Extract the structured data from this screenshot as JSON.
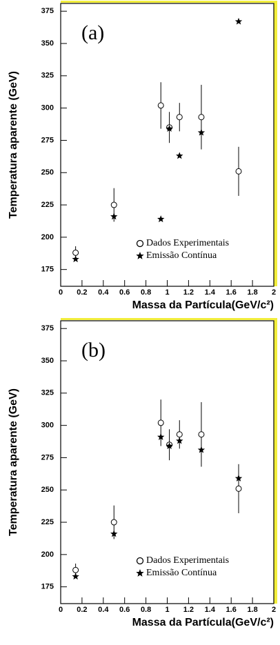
{
  "chart_data": [
    {
      "type": "scatter",
      "annotation": "(a)",
      "xlabel": "Massa da Partícula(GeV/c²)",
      "ylabel": "Temperatura aparente (GeV)",
      "xlim": [
        0,
        2
      ],
      "xticks": [
        0,
        0.2,
        0.4,
        0.6,
        0.8,
        1,
        1.2,
        1.4,
        1.6,
        1.8,
        2
      ],
      "ylim": [
        162,
        381
      ],
      "yticks": [
        175,
        200,
        225,
        250,
        275,
        300,
        325,
        350,
        375
      ],
      "legend": "lower right",
      "x": [
        0.14,
        0.5,
        0.94,
        1.02,
        1.115,
        1.32,
        1.67
      ],
      "series": [
        {
          "name": "Dados Experimentais",
          "marker": "circle",
          "color": "#000000",
          "values": [
            188,
            225,
            302,
            285,
            293,
            293,
            251
          ],
          "errors": [
            5,
            13,
            18,
            12,
            11,
            25,
            19
          ]
        },
        {
          "name": "Emissão Contínua",
          "marker": "star",
          "color": "#000000",
          "values": [
            183,
            216,
            214,
            284,
            263,
            281,
            367
          ]
        }
      ]
    },
    {
      "type": "scatter",
      "annotation": "(b)",
      "xlabel": "Massa da Partícula(GeV/c²)",
      "ylabel": "Temperatura aparente (GeV)",
      "xlim": [
        0,
        2
      ],
      "xticks": [
        0,
        0.2,
        0.4,
        0.6,
        0.8,
        1,
        1.2,
        1.4,
        1.6,
        1.8,
        2
      ],
      "ylim": [
        162,
        381
      ],
      "yticks": [
        175,
        200,
        225,
        250,
        275,
        300,
        325,
        350,
        375
      ],
      "legend": "lower right",
      "x": [
        0.14,
        0.5,
        0.94,
        1.02,
        1.115,
        1.32,
        1.67
      ],
      "series": [
        {
          "name": "Dados Experimentais",
          "marker": "circle",
          "color": "#000000",
          "values": [
            188,
            225,
            302,
            285,
            293,
            293,
            251
          ],
          "errors": [
            5,
            13,
            18,
            12,
            11,
            25,
            19
          ]
        },
        {
          "name": "Emissão Contínua",
          "marker": "star",
          "color": "#000000",
          "values": [
            183,
            216,
            291,
            284,
            288,
            281,
            259
          ]
        }
      ]
    }
  ]
}
